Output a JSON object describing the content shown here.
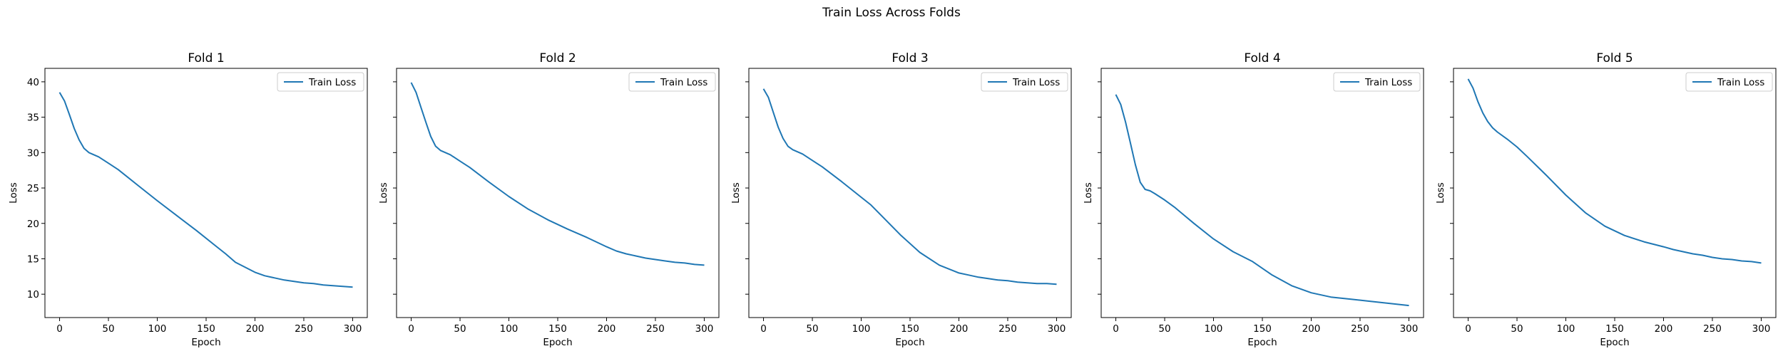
{
  "figure": {
    "title": "Train Loss Across Folds",
    "line_color": "#1f77b4"
  },
  "chart_data": [
    {
      "type": "line",
      "title": "Fold 1",
      "xlabel": "Epoch",
      "ylabel": "Loss",
      "xlim": [
        -15,
        315
      ],
      "ylim": [
        6.7,
        41.9
      ],
      "xticks": [
        0,
        50,
        100,
        150,
        200,
        250,
        300
      ],
      "yticks": [
        10,
        15,
        20,
        25,
        30,
        35,
        40
      ],
      "legend": "top-right",
      "series": [
        {
          "name": "Train Loss",
          "x": [
            0,
            5,
            10,
            15,
            20,
            25,
            30,
            40,
            50,
            60,
            80,
            100,
            120,
            140,
            160,
            170,
            180,
            190,
            200,
            210,
            220,
            230,
            240,
            250,
            260,
            270,
            280,
            290,
            300
          ],
          "y": [
            38.5,
            37.3,
            35.4,
            33.4,
            31.8,
            30.6,
            30.0,
            29.4,
            28.5,
            27.6,
            25.4,
            23.2,
            21.1,
            19.0,
            16.8,
            15.7,
            14.5,
            13.8,
            13.1,
            12.6,
            12.3,
            12.0,
            11.8,
            11.6,
            11.5,
            11.3,
            11.2,
            11.1,
            11.0
          ]
        }
      ]
    },
    {
      "type": "line",
      "title": "Fold 2",
      "xlabel": "Epoch",
      "ylabel": "Loss",
      "xlim": [
        -15,
        315
      ],
      "ylim": [
        6.7,
        41.9
      ],
      "xticks": [
        0,
        50,
        100,
        150,
        200,
        250,
        300
      ],
      "yticks": [
        10,
        15,
        20,
        25,
        30,
        35,
        40
      ],
      "legend": "top-right",
      "series": [
        {
          "name": "Train Loss",
          "x": [
            0,
            5,
            10,
            15,
            20,
            25,
            30,
            40,
            50,
            60,
            80,
            100,
            120,
            140,
            160,
            180,
            200,
            210,
            220,
            230,
            240,
            250,
            260,
            270,
            280,
            290,
            300
          ],
          "y": [
            39.9,
            38.5,
            36.4,
            34.3,
            32.3,
            30.9,
            30.3,
            29.7,
            28.8,
            27.9,
            25.8,
            23.8,
            22.0,
            20.5,
            19.2,
            18.0,
            16.7,
            16.1,
            15.7,
            15.4,
            15.1,
            14.9,
            14.7,
            14.5,
            14.4,
            14.2,
            14.1
          ]
        }
      ]
    },
    {
      "type": "line",
      "title": "Fold 3",
      "xlabel": "Epoch",
      "ylabel": "Loss",
      "xlim": [
        -15,
        315
      ],
      "ylim": [
        6.7,
        41.9
      ],
      "xticks": [
        0,
        50,
        100,
        150,
        200,
        250,
        300
      ],
      "yticks": [
        10,
        15,
        20,
        25,
        30,
        35,
        40
      ],
      "legend": "top-right",
      "series": [
        {
          "name": "Train Loss",
          "x": [
            0,
            5,
            10,
            15,
            20,
            25,
            30,
            40,
            50,
            60,
            80,
            100,
            110,
            120,
            140,
            160,
            180,
            200,
            210,
            220,
            230,
            240,
            250,
            260,
            270,
            280,
            290,
            300
          ],
          "y": [
            39.0,
            37.8,
            35.7,
            33.6,
            32.0,
            30.9,
            30.4,
            29.8,
            28.9,
            28.0,
            25.9,
            23.7,
            22.6,
            21.2,
            18.4,
            15.9,
            14.1,
            13.0,
            12.7,
            12.4,
            12.2,
            12.0,
            11.9,
            11.7,
            11.6,
            11.5,
            11.5,
            11.4
          ]
        }
      ]
    },
    {
      "type": "line",
      "title": "Fold 4",
      "xlabel": "Epoch",
      "ylabel": "Loss",
      "xlim": [
        -15,
        315
      ],
      "ylim": [
        6.7,
        41.9
      ],
      "xticks": [
        0,
        50,
        100,
        150,
        200,
        250,
        300
      ],
      "yticks": [
        10,
        15,
        20,
        25,
        30,
        35,
        40
      ],
      "legend": "top-right",
      "series": [
        {
          "name": "Train Loss",
          "x": [
            0,
            5,
            10,
            15,
            20,
            25,
            30,
            35,
            40,
            50,
            60,
            80,
            100,
            120,
            140,
            160,
            180,
            200,
            220,
            240,
            260,
            280,
            300
          ],
          "y": [
            38.2,
            36.8,
            34.3,
            31.3,
            28.3,
            25.8,
            24.8,
            24.6,
            24.2,
            23.3,
            22.3,
            20.0,
            17.8,
            16.0,
            14.6,
            12.7,
            11.2,
            10.2,
            9.6,
            9.3,
            9.0,
            8.7,
            8.4
          ]
        }
      ]
    },
    {
      "type": "line",
      "title": "Fold 5",
      "xlabel": "Epoch",
      "ylabel": "Loss",
      "xlim": [
        -15,
        315
      ],
      "ylim": [
        6.7,
        41.9
      ],
      "xticks": [
        0,
        50,
        100,
        150,
        200,
        250,
        300
      ],
      "yticks": [
        10,
        15,
        20,
        25,
        30,
        35,
        40
      ],
      "legend": "top-right",
      "series": [
        {
          "name": "Train Loss",
          "x": [
            0,
            5,
            10,
            15,
            20,
            25,
            30,
            40,
            50,
            60,
            80,
            100,
            120,
            140,
            160,
            180,
            200,
            210,
            220,
            230,
            240,
            250,
            260,
            270,
            280,
            290,
            300
          ],
          "y": [
            40.4,
            39.1,
            37.2,
            35.6,
            34.4,
            33.5,
            32.9,
            31.9,
            30.8,
            29.5,
            26.8,
            24.0,
            21.5,
            19.6,
            18.3,
            17.4,
            16.7,
            16.3,
            16.0,
            15.7,
            15.5,
            15.2,
            15.0,
            14.9,
            14.7,
            14.6,
            14.4
          ]
        }
      ]
    }
  ]
}
